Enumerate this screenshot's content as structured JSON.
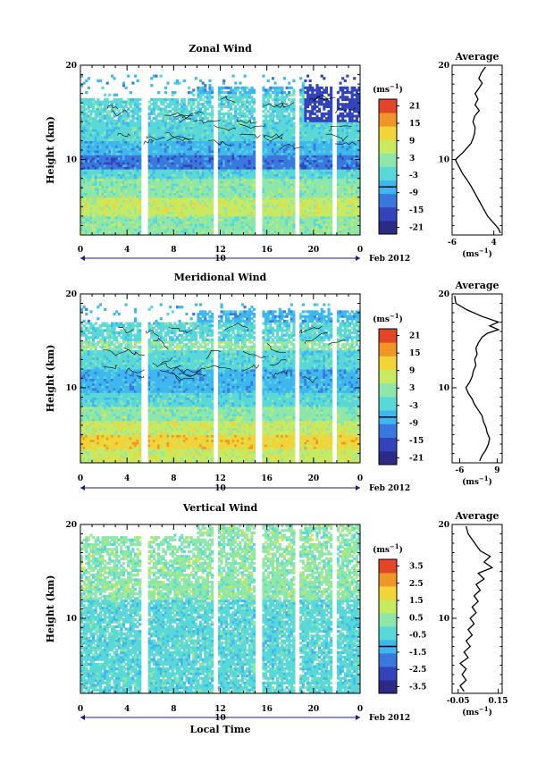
{
  "panels": [
    {
      "id": "zonal",
      "title": "Zonal Wind",
      "ylabel": "Height (km)",
      "ylim": [
        2,
        20
      ],
      "yticks": [
        "20",
        "10"
      ],
      "xticks": [
        "0",
        "4",
        "8",
        "12",
        "16",
        "20",
        "0"
      ],
      "day_label": "10",
      "date_label": "Feb 2012",
      "colorbar": {
        "unit_base": "(ms",
        "unit_exp": "−1",
        "unit_end": ")",
        "ticks": [
          "21",
          "15",
          "9",
          "3",
          "-3",
          "-9",
          "-15",
          "-21"
        ]
      },
      "average": {
        "title": "Average",
        "xticks": [
          "-6",
          "4"
        ],
        "xlim": [
          -6,
          6
        ],
        "yticks": [
          "20",
          "10"
        ],
        "unit_base": "(ms",
        "unit_exp": "−1",
        "unit_end": ")",
        "profile": [
          [
            5.6,
            2.2
          ],
          [
            5.2,
            2.6
          ],
          [
            4.5,
            3.0
          ],
          [
            3.5,
            3.5
          ],
          [
            2.5,
            4.0
          ],
          [
            1.5,
            4.8
          ],
          [
            0.5,
            5.6
          ],
          [
            -0.5,
            6.4
          ],
          [
            -1.5,
            7.2
          ],
          [
            -2.5,
            7.9
          ],
          [
            -3.5,
            8.5
          ],
          [
            -4.2,
            9.1
          ],
          [
            -4.8,
            9.6
          ],
          [
            -5.2,
            10.0
          ],
          [
            -4.5,
            10.3
          ],
          [
            -3.5,
            10.7
          ],
          [
            -2.5,
            11.2
          ],
          [
            -1.5,
            11.7
          ],
          [
            -1.0,
            12.2
          ],
          [
            -0.6,
            12.8
          ],
          [
            -0.5,
            13.4
          ],
          [
            -1.0,
            14.0
          ],
          [
            -0.6,
            14.6
          ],
          [
            0.5,
            15.2
          ],
          [
            -0.5,
            15.8
          ],
          [
            0.2,
            16.4
          ],
          [
            -0.5,
            17.0
          ],
          [
            0.5,
            17.6
          ],
          [
            1.2,
            18.1
          ],
          [
            0.4,
            18.6
          ],
          [
            1.0,
            19.2
          ],
          [
            2.0,
            19.8
          ]
        ]
      }
    },
    {
      "id": "meridional",
      "title": "Meridional Wind",
      "ylabel": "Height (km)",
      "ylim": [
        2,
        20
      ],
      "yticks": [
        "20",
        "10"
      ],
      "xticks": [
        "0",
        "4",
        "8",
        "12",
        "16",
        "20",
        "0"
      ],
      "day_label": "10",
      "date_label": "Feb 2012",
      "colorbar": {
        "unit_base": "(ms",
        "unit_exp": "−1",
        "unit_end": ")",
        "ticks": [
          "21",
          "15",
          "9",
          "3",
          "-3",
          "-9",
          "-15",
          "-21"
        ]
      },
      "average": {
        "title": "Average",
        "xticks": [
          "-6",
          "9"
        ],
        "xlim": [
          -9,
          11
        ],
        "yticks": [
          "20",
          "10"
        ],
        "unit_base": "(ms",
        "unit_exp": "−1",
        "unit_end": ")",
        "profile": [
          [
            2.0,
            2.2
          ],
          [
            3.0,
            2.8
          ],
          [
            4.5,
            3.4
          ],
          [
            5.5,
            4.0
          ],
          [
            6.0,
            4.6
          ],
          [
            5.0,
            5.2
          ],
          [
            4.5,
            5.8
          ],
          [
            3.5,
            6.4
          ],
          [
            3.0,
            7.0
          ],
          [
            1.5,
            7.6
          ],
          [
            0.0,
            8.2
          ],
          [
            -1.0,
            8.8
          ],
          [
            -2.5,
            9.4
          ],
          [
            -3.5,
            10.0
          ],
          [
            -2.0,
            10.6
          ],
          [
            -1.0,
            11.2
          ],
          [
            -0.5,
            11.8
          ],
          [
            0.5,
            12.4
          ],
          [
            0.0,
            13.0
          ],
          [
            1.0,
            13.6
          ],
          [
            0.5,
            14.2
          ],
          [
            1.5,
            14.8
          ],
          [
            3.0,
            15.4
          ],
          [
            5.0,
            15.8
          ],
          [
            9.5,
            16.2
          ],
          [
            6.0,
            16.6
          ],
          [
            9.5,
            17.0
          ],
          [
            3.0,
            17.6
          ],
          [
            -3.0,
            18.3
          ],
          [
            -7.5,
            19.0
          ],
          [
            -8.0,
            19.8
          ]
        ]
      }
    },
    {
      "id": "vertical",
      "title": "Vertical Wind",
      "ylabel": "Height (km)",
      "ylim": [
        2,
        20
      ],
      "yticks": [
        "20",
        "10"
      ],
      "xticks": [
        "0",
        "4",
        "8",
        "12",
        "16",
        "20",
        "0"
      ],
      "day_label": "10",
      "date_label": "Feb 2012",
      "xlabel": "Local Time",
      "colorbar": {
        "unit_base": "(ms",
        "unit_exp": "−1",
        "unit_end": ")",
        "ticks": [
          "3.5",
          "2.5",
          "1.5",
          "0.5",
          "-0.5",
          "-1.5",
          "-2.5",
          "-3.5"
        ]
      },
      "average": {
        "title": "Average",
        "xticks": [
          "-0.05",
          "0.15"
        ],
        "xlim": [
          -0.08,
          0.17
        ],
        "yticks": [
          "20",
          "10"
        ],
        "unit_base": "(ms",
        "unit_exp": "−1",
        "unit_end": ")",
        "profile": [
          [
            -0.02,
            2.2
          ],
          [
            -0.04,
            2.8
          ],
          [
            -0.01,
            3.4
          ],
          [
            -0.03,
            4.0
          ],
          [
            -0.01,
            4.6
          ],
          [
            -0.04,
            5.2
          ],
          [
            0.0,
            5.8
          ],
          [
            -0.02,
            6.4
          ],
          [
            0.01,
            7.0
          ],
          [
            -0.01,
            7.6
          ],
          [
            0.02,
            8.2
          ],
          [
            0.0,
            8.8
          ],
          [
            0.03,
            9.4
          ],
          [
            0.01,
            10.0
          ],
          [
            0.04,
            10.6
          ],
          [
            0.02,
            11.2
          ],
          [
            0.05,
            11.8
          ],
          [
            0.03,
            12.4
          ],
          [
            0.06,
            13.0
          ],
          [
            0.04,
            13.6
          ],
          [
            0.08,
            14.2
          ],
          [
            0.05,
            14.8
          ],
          [
            0.12,
            15.4
          ],
          [
            0.08,
            16.0
          ],
          [
            0.11,
            16.6
          ],
          [
            0.06,
            17.2
          ],
          [
            0.04,
            17.8
          ],
          [
            0.02,
            18.4
          ],
          [
            0.0,
            19.0
          ],
          [
            -0.01,
            19.8
          ]
        ]
      }
    }
  ],
  "colors": {
    "scale": [
      "#2b2b85",
      "#3344bb",
      "#3a78dc",
      "#3fb6ee",
      "#5ad8d8",
      "#8ee6aa",
      "#c8ea62",
      "#f2d338",
      "#f09628",
      "#e24628"
    ],
    "axis": "#000000",
    "time_line": "#1b1b7a"
  }
}
